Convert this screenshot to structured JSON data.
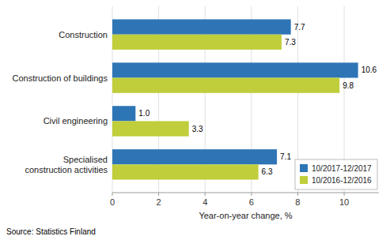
{
  "chart_data": {
    "type": "bar",
    "orientation": "horizontal",
    "categories": [
      "Specialised\nconstruction activities",
      "Civil engineering",
      "Construction of buildings",
      "Construction"
    ],
    "series": [
      {
        "name": "10/2017-12/2017",
        "color": "#2E75B6",
        "values": [
          7.1,
          1.0,
          10.6,
          7.7
        ],
        "value_labels": [
          "7.1",
          "1.0",
          "10.6",
          "7.7"
        ]
      },
      {
        "name": "10/2016-12/2016",
        "color": "#BFCE3A",
        "values": [
          6.3,
          3.3,
          9.8,
          7.3
        ],
        "value_labels": [
          "6.3",
          "3.3",
          "9.8",
          "7.3"
        ]
      }
    ],
    "xlabel": "Year-on-year change, %",
    "xlim": [
      0,
      11.5
    ],
    "xticks": [
      0,
      2,
      4,
      6,
      8,
      10
    ],
    "grid": true,
    "legend": "lower right",
    "data_labels": true,
    "annotations": [
      "Source: Statistics Finland"
    ]
  }
}
